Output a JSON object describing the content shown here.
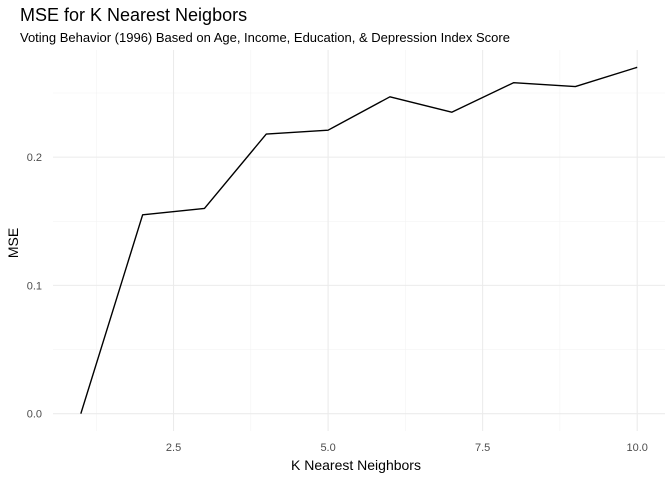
{
  "chart_data": {
    "type": "line",
    "title": "MSE for K Nearest Neigbors",
    "subtitle": "Voting Behavior (1996) Based on Age, Income, Education, & Depression Index Score",
    "xlabel": "K Nearest Neighbors",
    "ylabel": "MSE",
    "x": [
      1,
      2,
      3,
      4,
      5,
      6,
      7,
      8,
      9,
      10
    ],
    "y": [
      0.0,
      0.155,
      0.16,
      0.218,
      0.221,
      0.247,
      0.235,
      0.258,
      0.255,
      0.27
    ],
    "xlim": [
      0.55,
      10.45
    ],
    "ylim": [
      -0.0135,
      0.2835
    ],
    "x_ticks": [
      2.5,
      5.0,
      7.5,
      10.0
    ],
    "x_tick_labels": [
      "2.5",
      "5.0",
      "7.5",
      "10.0"
    ],
    "x_minor_ticks": [
      1.25,
      3.75,
      6.25,
      8.75
    ],
    "y_ticks": [
      0.0,
      0.1,
      0.2
    ],
    "y_tick_labels": [
      "0.0",
      "0.1",
      "0.2"
    ],
    "y_minor_ticks": [
      0.05,
      0.15,
      0.25
    ],
    "grid": true,
    "line_color": "#000000",
    "grid_color": "#ebebeb",
    "background": "#ffffff"
  }
}
